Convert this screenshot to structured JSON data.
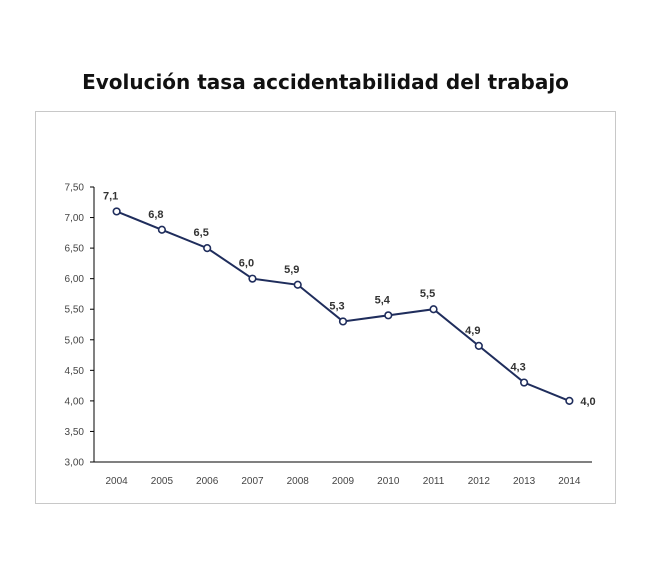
{
  "chart_data": {
    "type": "line",
    "title": "Evolución tasa accidentabilidad del trabajo",
    "xlabel": "",
    "ylabel": "",
    "categories": [
      "2004",
      "2005",
      "2006",
      "2007",
      "2008",
      "2009",
      "2010",
      "2011",
      "2012",
      "2013",
      "2014"
    ],
    "series": [
      {
        "values": [
          7.1,
          6.8,
          6.5,
          6.0,
          5.9,
          5.3,
          5.4,
          5.5,
          4.9,
          4.3,
          4.0
        ],
        "data_labels": [
          "7,1",
          "6,8",
          "6,5",
          "6,0",
          "5,9",
          "5,3",
          "5,4",
          "5,5",
          "4,9",
          "4,3",
          "4,0"
        ],
        "color": "#1f2d5c"
      }
    ],
    "ylim": [
      3.0,
      7.5
    ],
    "yticks": [
      3.0,
      3.5,
      4.0,
      4.5,
      5.0,
      5.5,
      6.0,
      6.5,
      7.0,
      7.5
    ],
    "ytick_labels": [
      "3,00",
      "3,50",
      "4,00",
      "4,50",
      "5,00",
      "5,50",
      "6,00",
      "6,50",
      "7,00",
      "7,50"
    ],
    "grid": false,
    "legend": "none",
    "line_color": "#1f2d5c",
    "axis_color": "#000000"
  }
}
